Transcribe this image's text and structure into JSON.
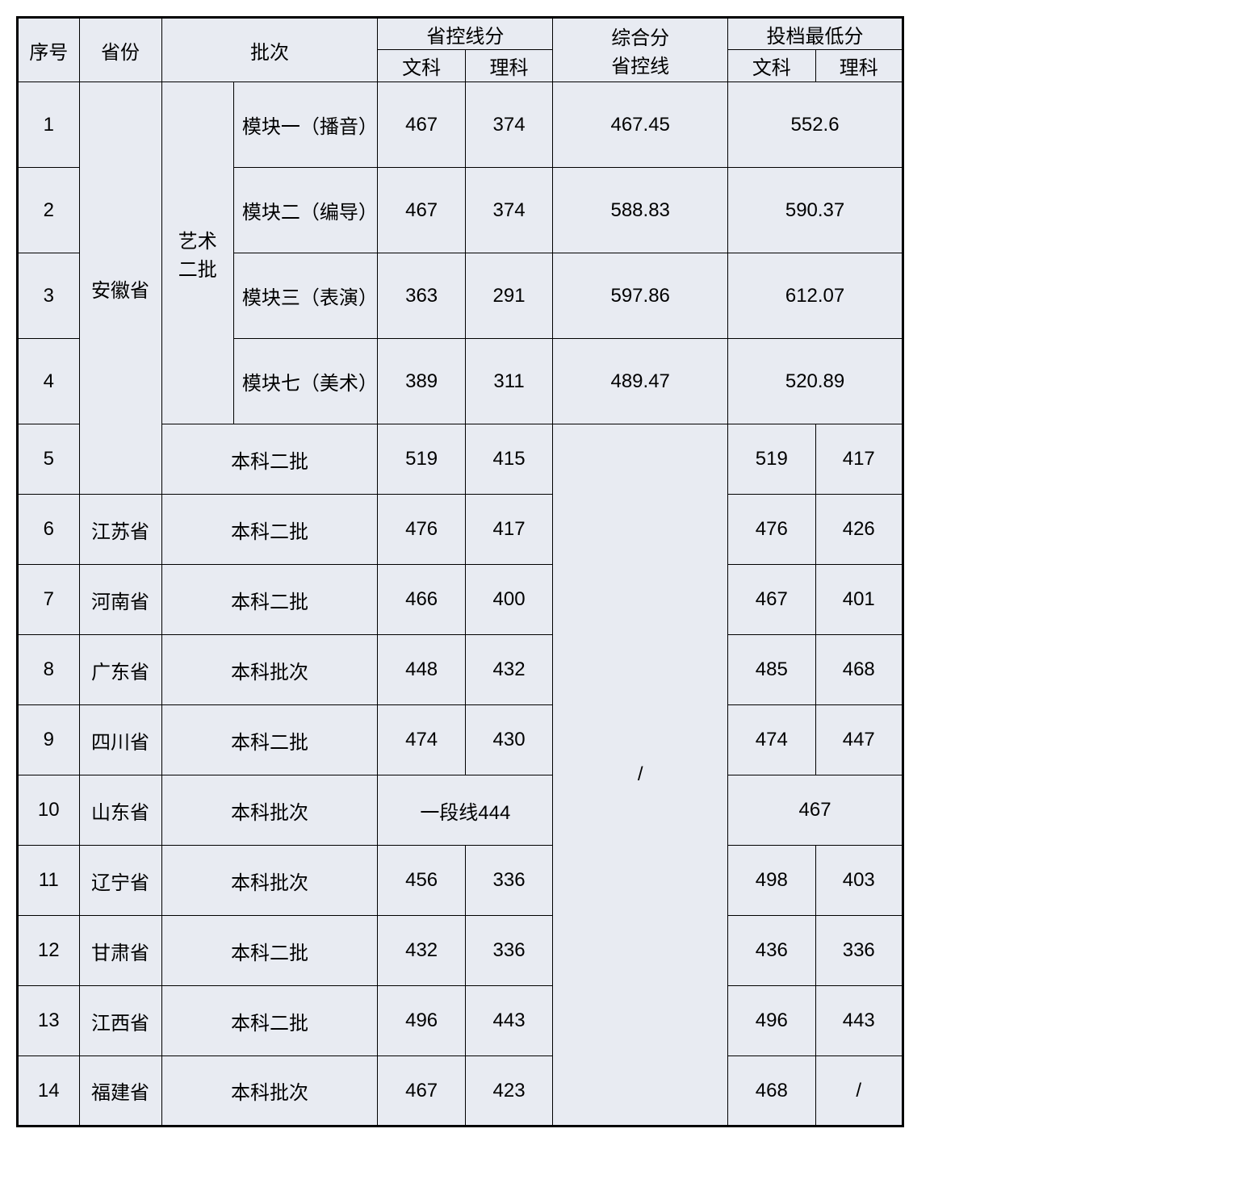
{
  "headers": {
    "seq": "序号",
    "province": "省份",
    "batch": "批次",
    "control_line": "省控线分",
    "wenke": "文科",
    "like": "理科",
    "comprehensive": "综合分\n省控线",
    "min_score": "投档最低分"
  },
  "colors": {
    "cell_bg": "#e8ebf2",
    "border": "#000000",
    "text": "#000000"
  },
  "fontsize": 24,
  "art_batch_label": "艺术\n二批",
  "province_anhui": "安徽省",
  "rows": [
    {
      "seq": "1",
      "batch_sub": "模块一（播音）",
      "wk": "467",
      "lk": "374",
      "comp": "467.45",
      "min_merged": "552.6"
    },
    {
      "seq": "2",
      "batch_sub": "模块二（编导）",
      "wk": "467",
      "lk": "374",
      "comp": "588.83",
      "min_merged": "590.37"
    },
    {
      "seq": "3",
      "batch_sub": "模块三（表演）",
      "wk": "363",
      "lk": "291",
      "comp": "597.86",
      "min_merged": "612.07"
    },
    {
      "seq": "4",
      "batch_sub": "模块七（美术）",
      "wk": "389",
      "lk": "311",
      "comp": "489.47",
      "min_merged": "520.89"
    },
    {
      "seq": "5",
      "batch": "本科二批",
      "wk": "519",
      "lk": "415",
      "mwk": "519",
      "mlk": "417"
    },
    {
      "seq": "6",
      "prov": "江苏省",
      "batch": "本科二批",
      "wk": "476",
      "lk": "417",
      "mwk": "476",
      "mlk": "426"
    },
    {
      "seq": "7",
      "prov": "河南省",
      "batch": "本科二批",
      "wk": "466",
      "lk": "400",
      "mwk": "467",
      "mlk": "401"
    },
    {
      "seq": "8",
      "prov": "广东省",
      "batch": "本科批次",
      "wk": "448",
      "lk": "432",
      "mwk": "485",
      "mlk": "468"
    },
    {
      "seq": "9",
      "prov": "四川省",
      "batch": "本科二批",
      "wk": "474",
      "lk": "430",
      "mwk": "474",
      "mlk": "447"
    },
    {
      "seq": "10",
      "prov": "山东省",
      "batch": "本科批次",
      "wk_merged": "一段线444",
      "min_merged": "467"
    },
    {
      "seq": "11",
      "prov": "辽宁省",
      "batch": "本科批次",
      "wk": "456",
      "lk": "336",
      "mwk": "498",
      "mlk": "403"
    },
    {
      "seq": "12",
      "prov": "甘肃省",
      "batch": "本科二批",
      "wk": "432",
      "lk": "336",
      "mwk": "436",
      "mlk": "336"
    },
    {
      "seq": "13",
      "prov": "江西省",
      "batch": "本科二批",
      "wk": "496",
      "lk": "443",
      "mwk": "496",
      "mlk": "443"
    },
    {
      "seq": "14",
      "prov": "福建省",
      "batch": "本科批次",
      "wk": "467",
      "lk": "423",
      "mwk": "468",
      "mlk": "/"
    }
  ],
  "comp_slash": "/"
}
